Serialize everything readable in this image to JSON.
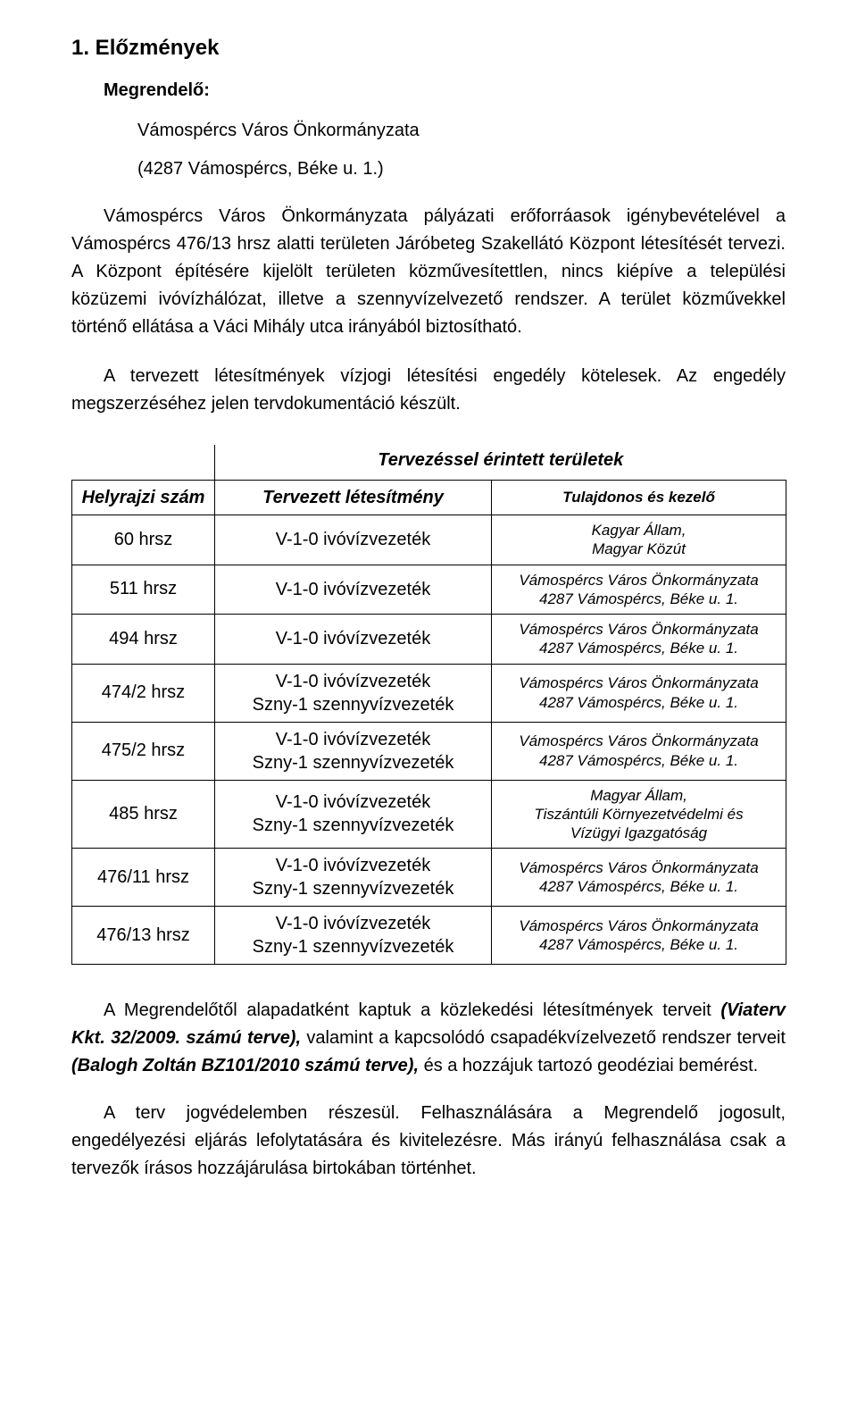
{
  "heading": "1. Előzmények",
  "subheading": "Megrendelő:",
  "client_name": "Vámospércs Város Önkormányzata",
  "client_address": "(4287 Vámospércs, Béke u. 1.)",
  "para1": "Vámospércs Város Önkormányzata pályázati erőforráasok igénybevételével a Vámospércs 476/13 hrsz alatti területen Járóbeteg Szakellátó Központ létesítését tervezi. A Központ építésére kijelölt területen közművesítettlen, nincs kiépíve a települési közüzemi ivóvízhálózat, illetve a szennyvízelvezető rendszer. A terület közművekkel történő ellátása a Váci Mihály utca irányából biztosítható.",
  "para2": "A tervezett létesítmények vízjogi létesítési engedély kötelesek. Az engedély megszerzéséhez jelen tervdokumentáció készült.",
  "table": {
    "title": "Tervezéssel érintett területek",
    "col_headers": [
      "Helyrajzi szám",
      "Tervezett létesítmény",
      "Tulajdonos és kezelő"
    ],
    "rows": [
      {
        "c0": "60 hrsz",
        "c1": "V-1-0 ivóvízvezeték",
        "c2": "Kagyar Állam,\nMagyar Közút"
      },
      {
        "c0": "511 hrsz",
        "c1": "V-1-0 ivóvízvezeték",
        "c2": "Vámospércs Város Önkormányzata\n4287 Vámospércs, Béke u. 1."
      },
      {
        "c0": "494 hrsz",
        "c1": "V-1-0 ivóvízvezeték",
        "c2": "Vámospércs Város Önkormányzata\n4287 Vámospércs, Béke u. 1."
      },
      {
        "c0": "474/2 hrsz",
        "c1": "V-1-0 ivóvízvezeték\nSzny-1 szennyvízvezeték",
        "c2": "Vámospércs Város Önkormányzata\n4287 Vámospércs, Béke u. 1."
      },
      {
        "c0": "475/2 hrsz",
        "c1": "V-1-0 ivóvízvezeték\nSzny-1 szennyvízvezeték",
        "c2": "Vámospércs Város Önkormányzata\n4287 Vámospércs, Béke u. 1."
      },
      {
        "c0": "485 hrsz",
        "c1": "V-1-0 ivóvízvezeték\nSzny-1 szennyvízvezeték",
        "c2": "Magyar Állam,\nTiszántúli Környezetvédelmi és\nVízügyi Igazgatóság"
      },
      {
        "c0": "476/11 hrsz",
        "c1": "V-1-0 ivóvízvezeték\nSzny-1 szennyvízvezeték",
        "c2": "Vámospércs Város Önkormányzata\n4287 Vámospércs, Béke u. 1."
      },
      {
        "c0": "476/13 hrsz",
        "c1": "V-1-0 ivóvízvezeték\nSzny-1 szennyvízvezeték",
        "c2": "Vámospércs Város Önkormányzata\n4287 Vámospércs, Béke u. 1."
      }
    ]
  },
  "foot_para1_pre": "A Megrendelőtől alapadatként kaptuk a közlekedési létesítmények terveit ",
  "foot_para1_bi1": "(Viaterv Kkt. 32/2009. számú terve),",
  "foot_para1_mid": " valamint a kapcsolódó csapadékvízelvezető rendszer terveit ",
  "foot_para1_bi2": "(Balogh Zoltán BZ101/2010 számú terve),",
  "foot_para1_end": " és a hozzájuk tartozó geodéziai bemérést.",
  "foot_para2": "A terv jogvédelemben részesül. Felhasználására a Megrendelő jogosult, engedélyezési eljárás lefolytatására és kivitelezésre. Más irányú felhasználása csak a tervezők írásos hozzájárulása birtokában történhet."
}
